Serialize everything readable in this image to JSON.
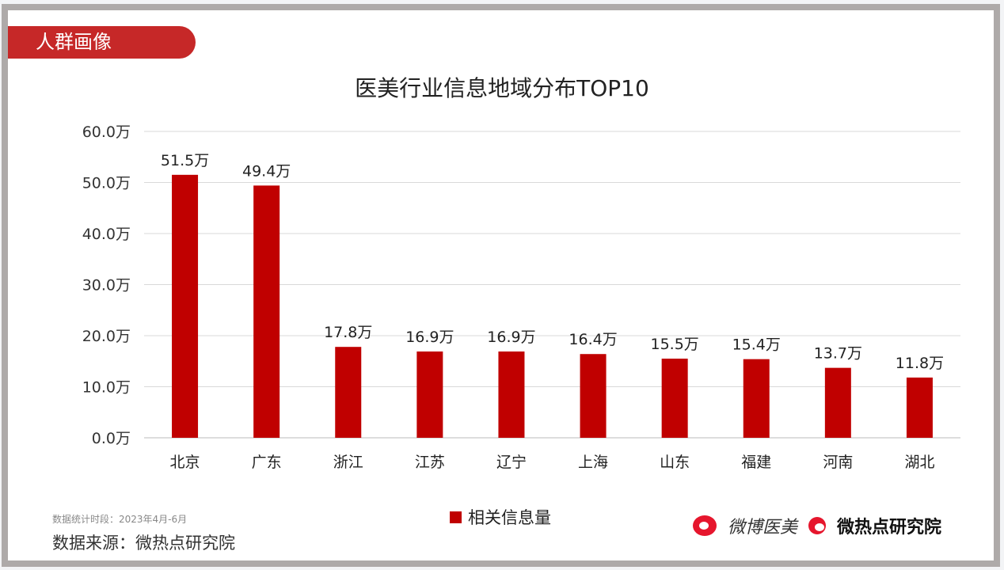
{
  "header": {
    "tag": "人群画像"
  },
  "chart_data": {
    "type": "bar",
    "title": "医美行业信息地域分布TOP10",
    "categories": [
      "北京",
      "广东",
      "浙江",
      "江苏",
      "辽宁",
      "上海",
      "山东",
      "福建",
      "河南",
      "湖北"
    ],
    "series": [
      {
        "name": "相关信息量",
        "values": [
          51.5,
          49.4,
          17.8,
          16.9,
          16.9,
          16.4,
          15.5,
          15.4,
          13.7,
          11.8
        ],
        "color": "#c00000"
      }
    ],
    "data_labels": [
      "51.5万",
      "49.4万",
      "17.8万",
      "16.9万",
      "16.9万",
      "16.4万",
      "15.5万",
      "15.4万",
      "13.7万",
      "11.8万"
    ],
    "yticks": [
      "0.0万",
      "10.0万",
      "20.0万",
      "30.0万",
      "40.0万",
      "50.0万",
      "60.0万"
    ],
    "ylim": [
      0,
      60
    ],
    "unit": "万",
    "grid": true,
    "legend": "bottom-center"
  },
  "footer": {
    "period": "数据统计时段：2023年4月-6月",
    "source": "数据来源：微热点研究院",
    "logo1": "微博医美",
    "logo2": "微热点研究院"
  }
}
